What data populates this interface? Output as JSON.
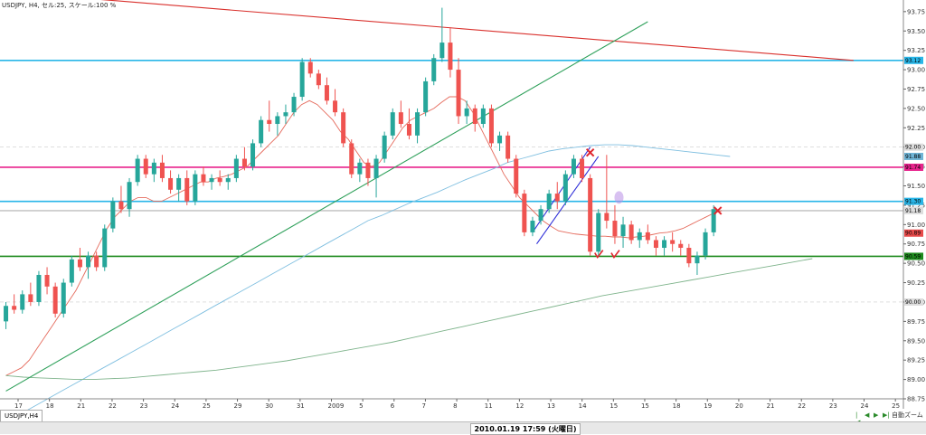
{
  "window": {
    "title": "USDJPY, H4, セル:25, スケール:100 %"
  },
  "tab": {
    "label": "USDJPY,H4"
  },
  "status": {
    "time": "2010.01.19 17:59 (火曜日)",
    "zoom_label": "自動ズーム"
  },
  "chart_data": {
    "type": "candlestick",
    "symbol": "USDJPY",
    "timeframe": "H4",
    "ylim": [
      88.75,
      93.9
    ],
    "y_ticks": [
      "93.75",
      "93.50",
      "93.25",
      "93.00",
      "92.75",
      "92.50",
      "92.25",
      "92.00",
      "91.75",
      "91.50",
      "91.25",
      "91.00",
      "90.75",
      "90.50",
      "90.25",
      "90.00",
      "89.75",
      "89.50",
      "89.25",
      "89.00",
      "88.75"
    ],
    "x_ticks": [
      "17",
      "18",
      "21",
      "22",
      "23",
      "24",
      "25",
      "29",
      "30",
      "31",
      "2009",
      "5",
      "6",
      "7",
      "8",
      "11",
      "12",
      "13",
      "14",
      "15",
      "15",
      "18",
      "19",
      "20",
      "21",
      "22",
      "23",
      "24",
      "25"
    ],
    "price_tags": [
      {
        "text": "93.12",
        "value": 93.12,
        "color": "#29b6e8"
      },
      {
        "text": "92.00",
        "value": 92.0,
        "color": "#dddddd"
      },
      {
        "text": "91.88",
        "value": 91.88,
        "color": "#6fb4d6"
      },
      {
        "text": "91.74",
        "value": 91.74,
        "color": "#e8228c"
      },
      {
        "text": "91.30",
        "value": 91.3,
        "color": "#29b6e8"
      },
      {
        "text": "91.18",
        "value": 91.18,
        "color": "#dddddd"
      },
      {
        "text": "90.89",
        "value": 90.89,
        "color": "#e84a4a"
      },
      {
        "text": "90.59",
        "value": 90.59,
        "color": "#1e8a1e"
      },
      {
        "text": "90.00",
        "value": 90.0,
        "color": "#dddddd"
      }
    ],
    "horizontal_lines": [
      {
        "value": 93.12,
        "color": "#29b6e8",
        "style": "solid"
      },
      {
        "value": 91.74,
        "color": "#e8228c",
        "style": "solid"
      },
      {
        "value": 91.3,
        "color": "#29b6e8",
        "style": "solid"
      },
      {
        "value": 91.18,
        "color": "#c8c8c8",
        "style": "solid"
      },
      {
        "value": 90.59,
        "color": "#1e8a1e",
        "style": "solid"
      },
      {
        "value": 92.0,
        "color": "#cccccc",
        "style": "dash"
      },
      {
        "value": 90.0,
        "color": "#cccccc",
        "style": "dash"
      }
    ],
    "trendlines": [
      {
        "name": "resistance",
        "color": "#d9302c",
        "from": [
          0.6,
          94.0
        ],
        "to": [
          103,
          93.12
        ]
      },
      {
        "name": "support",
        "color": "#2ea05a",
        "from": [
          0,
          88.85
        ],
        "to": [
          78,
          93.62
        ]
      }
    ],
    "channel": {
      "color": "#2f2fd8",
      "lines": [
        {
          "from": [
            64,
            90.9
          ],
          "to": [
            71,
            92.0
          ]
        },
        {
          "from": [
            64.5,
            90.75
          ],
          "to": [
            72,
            91.88
          ]
        }
      ]
    },
    "moving_averages": [
      {
        "name": "ma_fast",
        "color": "#e56b5d",
        "values": [
          89.05,
          89.1,
          89.15,
          89.25,
          89.4,
          89.55,
          89.7,
          89.85,
          90.0,
          90.15,
          90.35,
          90.55,
          90.75,
          90.95,
          91.1,
          91.2,
          91.3,
          91.35,
          91.35,
          91.3,
          91.3,
          91.35,
          91.4,
          91.45,
          91.5,
          91.55,
          91.55,
          91.6,
          91.62,
          91.65,
          91.7,
          91.75,
          91.85,
          91.95,
          92.05,
          92.15,
          92.3,
          92.45,
          92.55,
          92.6,
          92.55,
          92.45,
          92.35,
          92.2,
          92.1,
          91.95,
          91.8,
          91.75,
          91.8,
          91.95,
          92.1,
          92.25,
          92.35,
          92.4,
          92.45,
          92.5,
          92.58,
          92.65,
          92.65,
          92.6,
          92.45,
          92.25,
          92.05,
          91.85,
          91.65,
          91.5,
          91.35,
          91.25,
          91.15,
          91.05,
          90.98,
          90.92,
          90.9,
          90.88,
          90.87,
          90.86,
          90.85,
          90.85,
          90.84,
          90.84,
          90.83,
          90.84,
          90.85,
          90.87,
          90.89,
          90.9,
          90.92,
          90.95,
          91.0,
          91.05,
          91.1,
          91.15,
          91.18
        ]
      },
      {
        "name": "ma_mid",
        "color": "#7fbfe0",
        "values": [
          88.5,
          88.55,
          88.65,
          88.75,
          88.85,
          88.95,
          89.05,
          89.15,
          89.25,
          89.35,
          89.45,
          89.55,
          89.65,
          89.75,
          89.85,
          89.95,
          90.05,
          90.15,
          90.25,
          90.35,
          90.45,
          90.55,
          90.65,
          90.75,
          90.85,
          90.95,
          91.05,
          91.12,
          91.2,
          91.28,
          91.35,
          91.42,
          91.5,
          91.58,
          91.65,
          91.72,
          91.8,
          91.85,
          91.9,
          91.95,
          91.98,
          92.0,
          92.02,
          92.03,
          92.03,
          92.02,
          92.0,
          91.98,
          91.96,
          91.94,
          91.92,
          91.9,
          91.88
        ]
      },
      {
        "name": "ma_slow",
        "color": "#7fb48c",
        "values": [
          89.05,
          89.03,
          89.02,
          89.01,
          89.0,
          89.0,
          89.01,
          89.02,
          89.04,
          89.06,
          89.08,
          89.1,
          89.12,
          89.15,
          89.18,
          89.21,
          89.24,
          89.28,
          89.32,
          89.36,
          89.4,
          89.44,
          89.48,
          89.53,
          89.58,
          89.63,
          89.68,
          89.73,
          89.78,
          89.83,
          89.88,
          89.93,
          89.98,
          90.03,
          90.08,
          90.12,
          90.16,
          90.2,
          90.24,
          90.28,
          90.32,
          90.36,
          90.4,
          90.44,
          90.48,
          90.52,
          90.56
        ]
      },
      {
        "name": "ma_slow_tail",
        "color": "#7fb48c",
        "values": []
      }
    ],
    "candles_ohlc": [
      [
        89.75,
        90.0,
        89.65,
        89.95
      ],
      [
        89.95,
        90.1,
        89.85,
        89.9
      ],
      [
        89.9,
        90.15,
        89.85,
        90.1
      ],
      [
        90.1,
        90.25,
        89.95,
        90.0
      ],
      [
        90.0,
        90.4,
        89.95,
        90.35
      ],
      [
        90.35,
        90.45,
        90.1,
        90.2
      ],
      [
        90.2,
        90.25,
        89.8,
        89.85
      ],
      [
        89.85,
        90.3,
        89.8,
        90.25
      ],
      [
        90.25,
        90.6,
        90.2,
        90.55
      ],
      [
        90.55,
        90.7,
        90.4,
        90.45
      ],
      [
        90.45,
        90.65,
        90.3,
        90.6
      ],
      [
        90.6,
        90.65,
        90.4,
        90.45
      ],
      [
        90.45,
        91.0,
        90.4,
        90.95
      ],
      [
        90.95,
        91.35,
        90.9,
        91.3
      ],
      [
        91.3,
        91.5,
        91.15,
        91.2
      ],
      [
        91.2,
        91.6,
        91.1,
        91.55
      ],
      [
        91.55,
        91.9,
        91.5,
        91.85
      ],
      [
        91.85,
        91.9,
        91.6,
        91.65
      ],
      [
        91.65,
        91.85,
        91.55,
        91.8
      ],
      [
        91.8,
        91.9,
        91.55,
        91.6
      ],
      [
        91.6,
        91.7,
        91.4,
        91.45
      ],
      [
        91.45,
        91.65,
        91.3,
        91.6
      ],
      [
        91.6,
        91.7,
        91.25,
        91.3
      ],
      [
        91.3,
        91.7,
        91.25,
        91.65
      ],
      [
        91.65,
        91.75,
        91.5,
        91.55
      ],
      [
        91.55,
        91.65,
        91.45,
        91.6
      ],
      [
        91.6,
        91.7,
        91.5,
        91.55
      ],
      [
        91.55,
        91.65,
        91.45,
        91.6
      ],
      [
        91.6,
        91.9,
        91.55,
        91.85
      ],
      [
        91.85,
        92.0,
        91.7,
        91.75
      ],
      [
        91.75,
        92.1,
        91.7,
        92.05
      ],
      [
        92.05,
        92.4,
        92.0,
        92.35
      ],
      [
        92.35,
        92.6,
        92.2,
        92.3
      ],
      [
        92.3,
        92.45,
        92.15,
        92.4
      ],
      [
        92.4,
        92.55,
        92.3,
        92.45
      ],
      [
        92.45,
        92.7,
        92.4,
        92.65
      ],
      [
        92.65,
        93.15,
        92.6,
        93.1
      ],
      [
        93.1,
        93.15,
        92.9,
        92.95
      ],
      [
        92.95,
        93.0,
        92.75,
        92.8
      ],
      [
        92.8,
        92.9,
        92.55,
        92.6
      ],
      [
        92.6,
        92.75,
        92.4,
        92.45
      ],
      [
        92.45,
        92.5,
        92.0,
        92.05
      ],
      [
        92.05,
        92.1,
        91.6,
        91.65
      ],
      [
        91.65,
        91.85,
        91.55,
        91.8
      ],
      [
        91.8,
        91.85,
        91.5,
        91.6
      ],
      [
        91.6,
        91.9,
        91.35,
        91.85
      ],
      [
        91.85,
        92.2,
        91.8,
        92.15
      ],
      [
        92.15,
        92.5,
        92.1,
        92.45
      ],
      [
        92.45,
        92.6,
        92.25,
        92.3
      ],
      [
        92.3,
        92.5,
        92.1,
        92.15
      ],
      [
        92.15,
        92.5,
        92.05,
        92.45
      ],
      [
        92.45,
        92.9,
        92.4,
        92.85
      ],
      [
        92.85,
        93.2,
        92.8,
        93.15
      ],
      [
        93.15,
        93.8,
        93.1,
        93.35
      ],
      [
        93.35,
        93.55,
        92.9,
        93.0
      ],
      [
        93.0,
        93.15,
        92.3,
        92.4
      ],
      [
        92.4,
        92.6,
        92.3,
        92.5
      ],
      [
        92.5,
        92.55,
        92.2,
        92.3
      ],
      [
        92.3,
        92.55,
        92.25,
        92.5
      ],
      [
        92.5,
        92.55,
        92.0,
        92.05
      ],
      [
        92.05,
        92.2,
        91.95,
        92.15
      ],
      [
        92.15,
        92.2,
        91.8,
        91.85
      ],
      [
        91.85,
        91.9,
        91.35,
        91.4
      ],
      [
        91.4,
        91.45,
        90.85,
        90.9
      ],
      [
        90.9,
        91.1,
        90.85,
        91.05
      ],
      [
        91.05,
        91.25,
        91.0,
        91.2
      ],
      [
        91.2,
        91.45,
        91.15,
        91.4
      ],
      [
        91.4,
        91.55,
        91.2,
        91.3
      ],
      [
        91.3,
        91.7,
        91.25,
        91.65
      ],
      [
        91.65,
        91.9,
        91.6,
        91.85
      ],
      [
        91.85,
        91.9,
        91.55,
        91.6
      ],
      [
        91.6,
        91.65,
        90.6,
        90.65
      ],
      [
        90.65,
        91.2,
        90.6,
        91.15
      ],
      [
        91.15,
        91.9,
        90.95,
        91.05
      ],
      [
        91.05,
        91.25,
        90.75,
        90.85
      ],
      [
        90.85,
        91.1,
        90.7,
        91.0
      ],
      [
        91.0,
        91.05,
        90.75,
        90.8
      ],
      [
        90.8,
        90.95,
        90.7,
        90.9
      ],
      [
        90.9,
        91.0,
        90.75,
        90.8
      ],
      [
        90.8,
        90.85,
        90.6,
        90.7
      ],
      [
        90.7,
        90.85,
        90.6,
        90.8
      ],
      [
        90.8,
        90.9,
        90.65,
        90.75
      ],
      [
        90.75,
        90.8,
        90.6,
        90.7
      ],
      [
        90.7,
        90.75,
        90.45,
        90.5
      ],
      [
        90.5,
        90.65,
        90.35,
        90.6
      ],
      [
        90.6,
        90.95,
        90.55,
        90.9
      ],
      [
        90.9,
        91.25,
        90.85,
        91.2
      ]
    ],
    "annotations": [
      {
        "type": "cross",
        "color": "#e0262e",
        "x": 71,
        "y": 91.93
      },
      {
        "type": "cross",
        "color": "#e0262e",
        "x": 86.5,
        "y": 91.18
      },
      {
        "type": "check",
        "color": "#e0262e",
        "x": 72,
        "y": 90.6
      },
      {
        "type": "check",
        "color": "#e0262e",
        "x": 74,
        "y": 90.6
      },
      {
        "type": "ellipse",
        "color": "#b88ee6",
        "x": 74.5,
        "y": 91.35
      }
    ]
  }
}
